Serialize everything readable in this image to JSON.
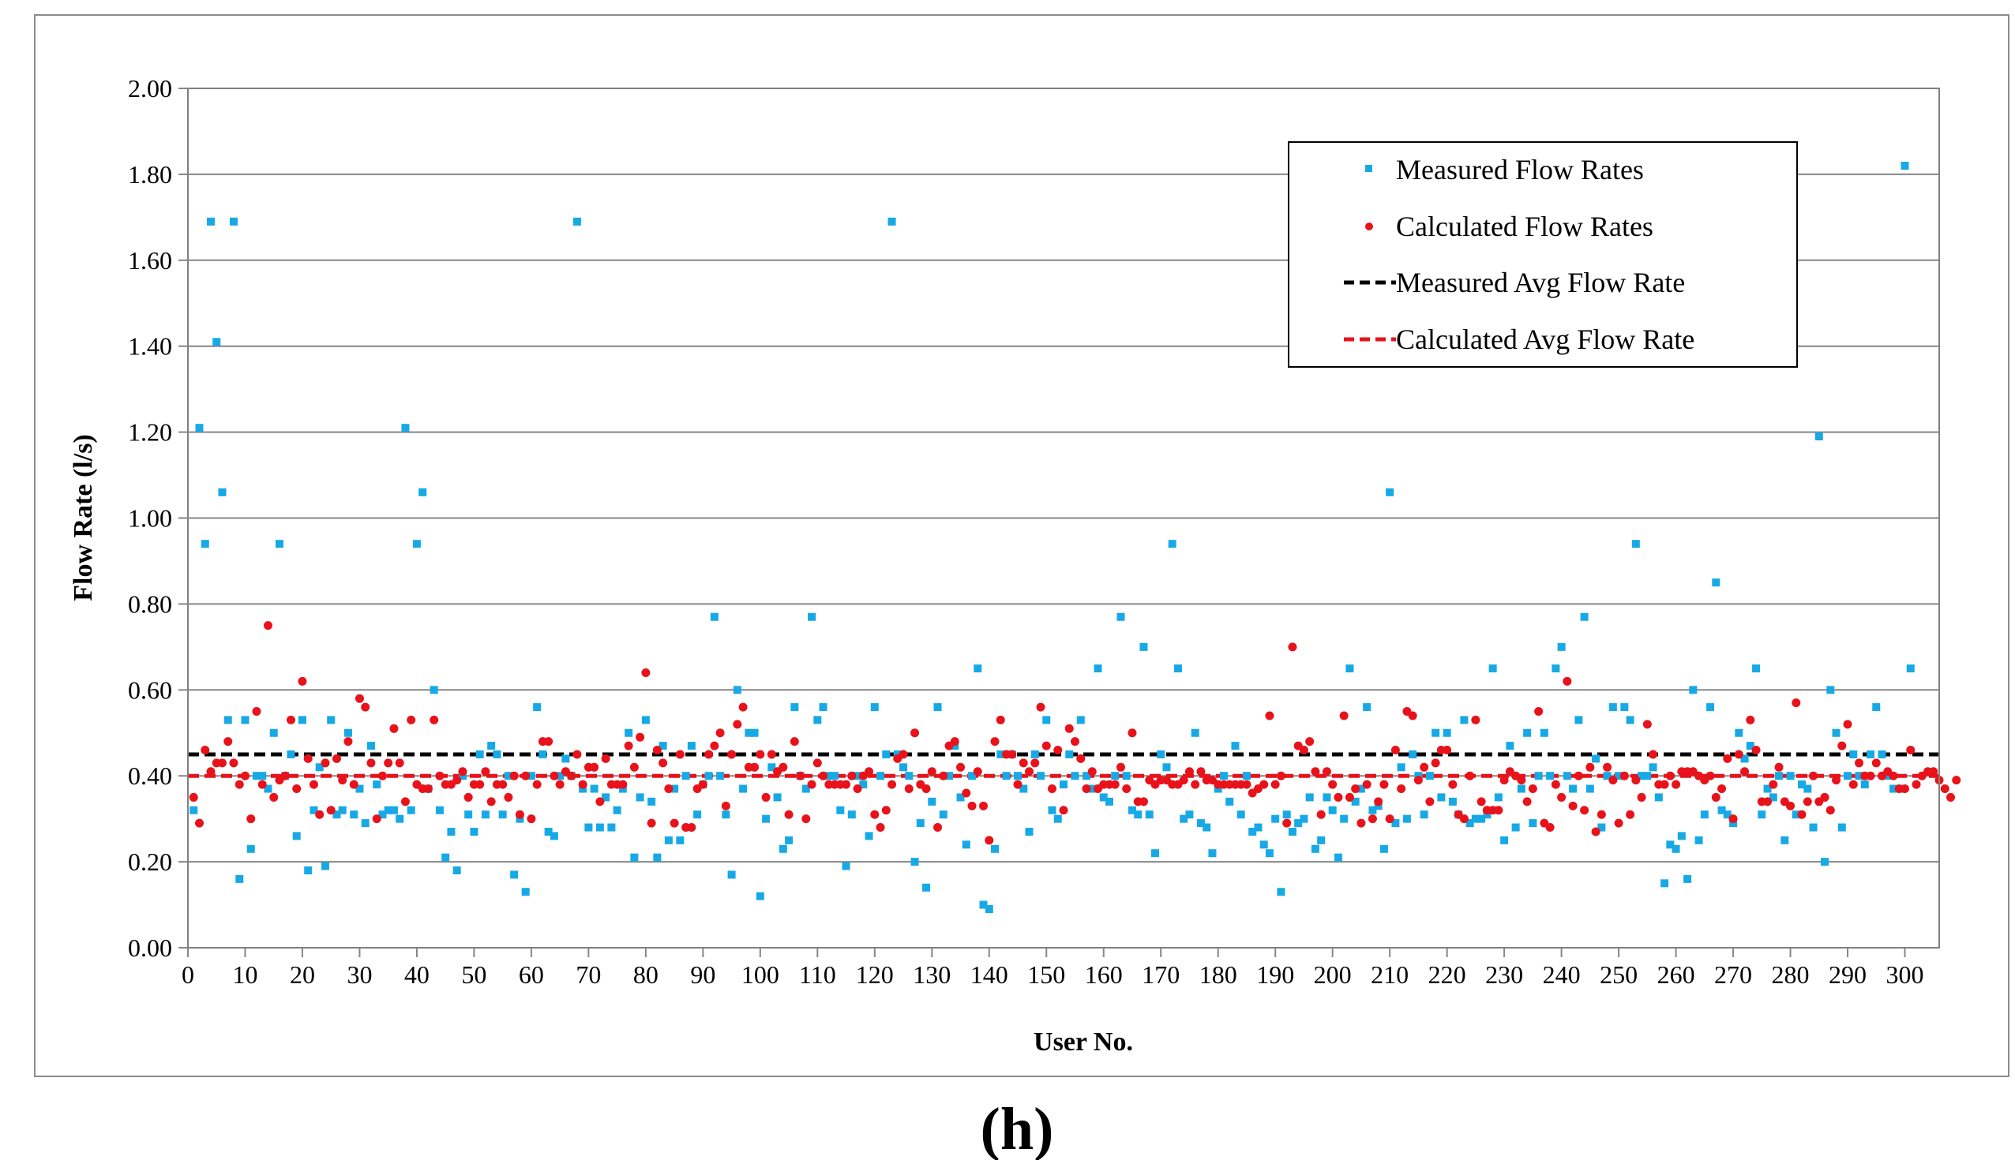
{
  "chart_data": {
    "type": "scatter",
    "xlabel": "User No.",
    "ylabel": "Flow Rate (l/s)",
    "xlim": [
      0,
      306
    ],
    "ylim": [
      0,
      2
    ],
    "x_ticks": [
      0,
      10,
      20,
      30,
      40,
      50,
      60,
      70,
      80,
      90,
      100,
      110,
      120,
      130,
      140,
      150,
      160,
      170,
      180,
      190,
      200,
      210,
      220,
      230,
      240,
      250,
      260,
      270,
      280,
      290,
      300
    ],
    "y_ticks": [
      "0.00",
      "0.20",
      "0.40",
      "0.60",
      "0.80",
      "1.00",
      "1.20",
      "1.40",
      "1.60",
      "1.80",
      "2.00"
    ],
    "grid": "horizontal",
    "legend_position": "top-right",
    "colors": {
      "measured": "#17a9e6",
      "calculated": "#e8121b",
      "measured_avg": "#000000",
      "calculated_avg": "#e8121b"
    },
    "series": [
      {
        "name": "Measured Flow Rates",
        "marker": "square",
        "values": [
          0.32,
          1.21,
          0.94,
          1.69,
          1.41,
          1.06,
          0.53,
          1.69,
          0.16,
          0.53,
          0.23,
          0.4,
          0.4,
          0.37,
          0.5,
          0.94,
          0.4,
          0.45,
          0.26,
          0.53,
          0.18,
          0.32,
          0.42,
          0.19,
          0.53,
          0.31,
          0.32,
          0.5,
          0.31,
          0.37,
          0.29,
          0.47,
          0.38,
          0.31,
          0.32,
          0.32,
          0.3,
          1.21,
          0.32,
          0.94,
          1.06,
          0.37,
          0.6,
          0.32,
          0.21,
          0.27,
          0.18,
          0.4,
          0.31,
          0.27,
          0.45,
          0.31,
          0.47,
          0.45,
          0.31,
          0.4,
          0.17,
          0.3,
          0.13,
          0.4,
          0.56,
          0.45,
          0.27,
          0.26,
          0.4,
          0.44,
          0.4,
          1.69,
          0.37,
          0.28,
          0.37,
          0.28,
          0.35,
          0.28,
          0.32,
          0.37,
          0.5,
          0.21,
          0.35,
          0.53,
          0.34,
          0.21,
          0.47,
          0.25,
          0.37,
          0.25,
          0.4,
          0.47,
          0.31,
          0.38,
          0.4,
          0.77,
          0.4,
          0.31,
          0.17,
          0.6,
          0.37,
          0.5,
          0.5,
          0.12,
          0.3,
          0.42,
          0.35,
          0.23,
          0.25,
          0.56,
          0.4,
          0.37,
          0.77,
          0.53,
          0.56,
          0.4,
          0.4,
          0.32,
          0.19,
          0.31,
          0.4,
          0.38,
          0.26,
          0.56,
          0.4,
          0.45,
          1.69,
          0.45,
          0.42,
          0.4,
          0.2,
          0.29,
          0.14,
          0.34,
          0.56,
          0.31,
          0.4,
          0.47,
          0.35,
          0.24,
          0.4,
          0.65,
          0.1,
          0.09,
          0.23,
          0.45,
          0.4,
          0.45,
          0.4,
          0.37,
          0.27,
          0.45,
          0.4,
          0.53,
          0.32,
          0.3,
          0.38,
          0.45,
          0.4,
          0.53,
          0.4,
          0.37,
          0.65,
          0.35,
          0.34,
          0.4,
          0.77,
          0.4,
          0.32,
          0.31,
          0.7,
          0.31,
          0.22,
          0.45,
          0.42,
          0.94,
          0.65,
          0.3,
          0.31,
          0.5,
          0.29,
          0.28,
          0.22,
          0.37,
          0.4,
          0.34,
          0.47,
          0.31,
          0.4,
          0.27,
          0.28,
          0.24,
          0.22,
          0.3,
          0.13,
          0.31,
          0.27,
          0.29,
          0.3,
          0.35,
          0.23,
          0.25,
          0.35,
          0.32,
          0.21,
          0.3,
          0.65,
          0.34,
          0.37,
          0.56,
          0.32,
          0.33,
          0.23,
          1.06,
          0.29,
          0.42,
          0.3,
          0.45,
          0.4,
          0.31,
          0.4,
          0.5,
          0.35,
          0.5,
          0.34,
          0.31,
          0.53,
          0.29,
          0.3,
          0.3,
          0.31,
          0.65,
          0.35,
          0.25,
          0.47,
          0.28,
          0.37,
          0.5,
          0.29,
          0.4,
          0.5,
          0.4,
          0.65,
          0.7,
          0.4,
          0.37,
          0.53,
          0.77,
          0.37,
          0.44,
          0.28,
          0.4,
          0.56,
          0.4,
          0.56,
          0.53,
          0.94,
          0.4,
          0.4,
          0.42,
          0.35,
          0.15,
          0.24,
          0.23,
          0.26,
          0.16,
          0.6,
          0.25,
          0.31,
          0.56,
          0.85,
          0.32,
          0.31,
          0.29,
          0.5,
          0.44,
          0.47,
          0.65,
          0.31,
          0.37,
          0.35,
          0.4,
          0.25,
          0.4,
          0.31,
          0.38,
          0.37,
          0.28,
          1.19,
          0.2,
          0.6,
          0.5,
          0.28,
          0.4,
          0.45,
          0.4,
          0.38,
          0.45,
          0.56,
          0.45,
          0.4,
          0.37,
          0.37,
          1.82,
          0.65
        ]
      },
      {
        "name": "Calculated Flow Rates",
        "marker": "circle",
        "values": [
          0.35,
          0.29,
          0.46,
          0.41,
          0.43,
          0.43,
          0.48,
          0.43,
          0.38,
          0.4,
          0.3,
          0.55,
          0.38,
          0.75,
          0.35,
          0.39,
          0.4,
          0.53,
          0.37,
          0.62,
          0.44,
          0.38,
          0.31,
          0.43,
          0.32,
          0.44,
          0.39,
          0.48,
          0.38,
          0.58,
          0.56,
          0.43,
          0.3,
          0.4,
          0.43,
          0.51,
          0.43,
          0.34,
          0.53,
          0.38,
          0.37,
          0.37,
          0.53,
          0.4,
          0.38,
          0.38,
          0.39,
          0.41,
          0.35,
          0.38,
          0.38,
          0.41,
          0.34,
          0.38,
          0.38,
          0.35,
          0.4,
          0.31,
          0.4,
          0.3,
          0.38,
          0.48,
          0.48,
          0.4,
          0.38,
          0.41,
          0.4,
          0.45,
          0.38,
          0.42,
          0.42,
          0.34,
          0.44,
          0.38,
          0.38,
          0.38,
          0.47,
          0.42,
          0.49,
          0.64,
          0.29,
          0.46,
          0.43,
          0.37,
          0.29,
          0.45,
          0.28,
          0.28,
          0.37,
          0.38,
          0.45,
          0.47,
          0.5,
          0.33,
          0.45,
          0.52,
          0.56,
          0.42,
          0.42,
          0.45,
          0.35,
          0.45,
          0.41,
          0.42,
          0.31,
          0.48,
          0.4,
          0.3,
          0.38,
          0.43,
          0.4,
          0.38,
          0.38,
          0.38,
          0.38,
          0.4,
          0.37,
          0.4,
          0.41,
          0.31,
          0.28,
          0.32,
          0.38,
          0.44,
          0.45,
          0.37,
          0.5,
          0.38,
          0.37,
          0.41,
          0.28,
          0.4,
          0.47,
          0.48,
          0.42,
          0.36,
          0.33,
          0.41,
          0.33,
          0.25,
          0.48,
          0.53,
          0.45,
          0.45,
          0.38,
          0.43,
          0.41,
          0.43,
          0.56,
          0.47,
          0.37,
          0.46,
          0.32,
          0.51,
          0.48,
          0.44,
          0.37,
          0.41,
          0.37,
          0.38,
          0.38,
          0.38,
          0.42,
          0.37,
          0.5,
          0.34,
          0.34,
          0.39,
          0.38,
          0.39,
          0.39,
          0.38,
          0.38,
          0.39,
          0.41,
          0.38,
          0.41,
          0.39,
          0.39,
          0.38,
          0.38,
          0.38,
          0.38,
          0.38,
          0.38,
          0.36,
          0.37,
          0.38,
          0.54,
          0.38,
          0.4,
          0.29,
          0.7,
          0.47,
          0.46,
          0.48,
          0.41,
          0.31,
          0.41,
          0.38,
          0.35,
          0.54,
          0.35,
          0.37,
          0.29,
          0.38,
          0.3,
          0.34,
          0.38,
          0.3,
          0.46,
          0.37,
          0.55,
          0.54,
          0.39,
          0.42,
          0.34,
          0.43,
          0.46,
          0.46,
          0.38,
          0.31,
          0.3,
          0.4,
          0.53,
          0.34,
          0.32,
          0.32,
          0.32,
          0.39,
          0.41,
          0.4,
          0.39,
          0.34,
          0.37,
          0.55,
          0.29,
          0.28,
          0.38,
          0.35,
          0.62,
          0.33,
          0.4,
          0.32,
          0.42,
          0.27,
          0.31,
          0.42,
          0.39,
          0.29,
          0.4,
          0.31,
          0.39,
          0.35,
          0.52,
          0.45,
          0.38,
          0.38,
          0.4,
          0.38,
          0.41,
          0.41,
          0.41,
          0.4,
          0.39,
          0.4,
          0.35,
          0.37,
          0.44,
          0.3,
          0.45,
          0.41,
          0.53,
          0.46,
          0.34,
          0.34,
          0.38,
          0.42,
          0.34,
          0.33,
          0.57,
          0.31,
          0.34,
          0.4,
          0.34,
          0.35,
          0.32,
          0.39,
          0.47,
          0.52,
          0.38,
          0.43,
          0.4,
          0.4,
          0.43,
          0.4,
          0.41,
          0.4,
          0.37,
          0.37,
          0.46,
          0.38,
          0.4,
          0.41,
          0.41,
          0.39,
          0.37,
          0.35,
          0.39
        ]
      },
      {
        "name": "Measured Avg Flow Rate",
        "line": "dashed",
        "value": 0.45
      },
      {
        "name": "Calculated Avg Flow Rate",
        "line": "dashed",
        "value": 0.4
      }
    ],
    "legend": [
      "Measured Flow Rates",
      "Calculated Flow Rates",
      "Measured Avg Flow Rate",
      "Calculated Avg Flow Rate"
    ]
  },
  "caption": "(h)"
}
